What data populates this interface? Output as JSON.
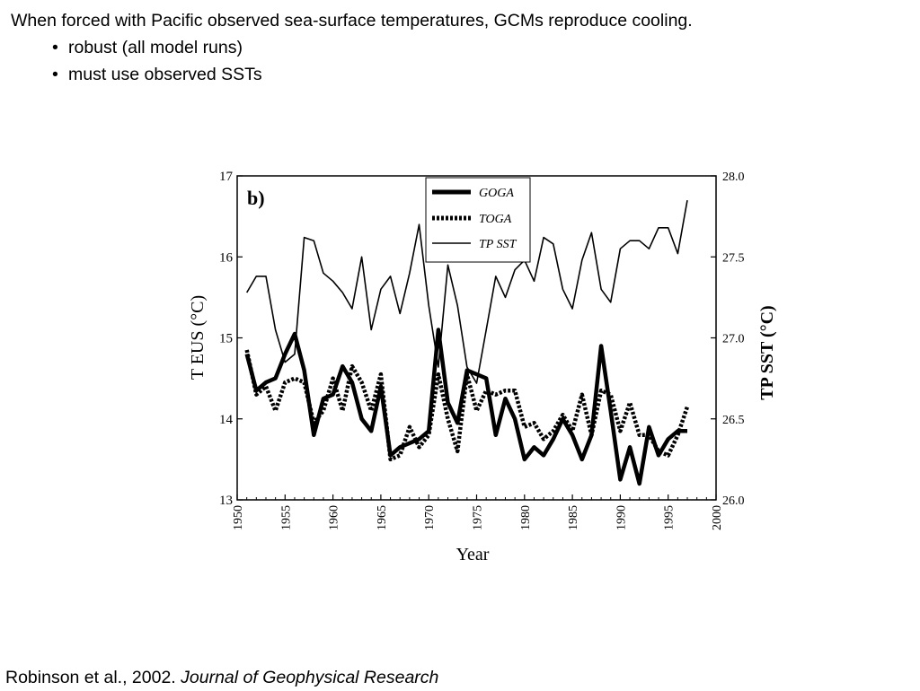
{
  "slide": {
    "heading": "When forced with Pacific observed sea-surface  temperatures, GCMs reproduce cooling.",
    "bullets": [
      {
        "marker": "•",
        "text": "robust (all model runs)"
      },
      {
        "marker": "•",
        "text": "must use observed SSTs"
      }
    ],
    "citation": {
      "authors": "Robinson et al., 2002. ",
      "journal": "Journal of Geophysical Research"
    }
  },
  "chart_data": {
    "type": "line",
    "panel_label": "b)",
    "xlabel": "Year",
    "ylabel_left": "T EUS (°C)",
    "ylabel_right": "TP SST (°C)",
    "xlim": [
      1950,
      2000
    ],
    "ylim_left": [
      13,
      17
    ],
    "ylim_right": [
      26.0,
      28.0
    ],
    "x_ticks": [
      "1950",
      "1955",
      "1960",
      "1965",
      "1970",
      "1975",
      "1980",
      "1985",
      "1990",
      "1995",
      "2000"
    ],
    "y_ticks_left": [
      "13",
      "14",
      "15",
      "16",
      "17"
    ],
    "y_ticks_right": [
      "26.0",
      "26.5",
      "27.0",
      "27.5",
      "28.0"
    ],
    "legend_position": "top-center",
    "grid": false,
    "x": [
      1951,
      1952,
      1953,
      1954,
      1955,
      1956,
      1957,
      1958,
      1959,
      1960,
      1961,
      1962,
      1963,
      1964,
      1965,
      1966,
      1967,
      1968,
      1969,
      1970,
      1971,
      1972,
      1973,
      1974,
      1975,
      1976,
      1977,
      1978,
      1979,
      1980,
      1981,
      1982,
      1983,
      1984,
      1985,
      1986,
      1987,
      1988,
      1989,
      1990,
      1991,
      1992,
      1993,
      1994,
      1995,
      1996,
      1997
    ],
    "series": [
      {
        "name": "GOGA",
        "style": "thick-solid",
        "axis": "left",
        "values": [
          14.8,
          14.35,
          14.45,
          14.5,
          14.8,
          15.05,
          14.6,
          13.8,
          14.25,
          14.3,
          14.65,
          14.45,
          14.0,
          13.85,
          14.4,
          13.55,
          13.65,
          13.7,
          13.75,
          13.85,
          15.1,
          14.2,
          13.95,
          14.6,
          14.55,
          14.5,
          13.8,
          14.25,
          14.0,
          13.5,
          13.65,
          13.55,
          13.75,
          14.0,
          13.8,
          13.5,
          13.8,
          14.9,
          14.1,
          13.25,
          13.65,
          13.2,
          13.9,
          13.55,
          13.75,
          13.85,
          13.85
        ]
      },
      {
        "name": "TOGA",
        "style": "thick-dotted",
        "axis": "left",
        "values": [
          14.85,
          14.3,
          14.4,
          14.1,
          14.45,
          14.5,
          14.45,
          13.95,
          14.1,
          14.5,
          14.1,
          14.65,
          14.45,
          14.1,
          14.55,
          13.5,
          13.55,
          13.9,
          13.65,
          13.8,
          14.55,
          14.0,
          13.6,
          14.55,
          14.1,
          14.35,
          14.3,
          14.35,
          14.35,
          13.9,
          13.95,
          13.75,
          13.85,
          14.05,
          13.85,
          14.3,
          13.8,
          14.35,
          14.3,
          13.85,
          14.2,
          13.8,
          13.8,
          13.6,
          13.55,
          13.8,
          14.15
        ]
      },
      {
        "name": "TP SST",
        "style": "thin-solid",
        "axis": "right",
        "values": [
          27.28,
          27.38,
          27.38,
          27.05,
          26.85,
          26.9,
          27.62,
          27.6,
          27.4,
          27.35,
          27.28,
          27.18,
          27.5,
          27.05,
          27.3,
          27.38,
          27.15,
          27.4,
          27.7,
          27.2,
          26.82,
          27.45,
          27.2,
          26.82,
          26.72,
          27.05,
          27.38,
          27.25,
          27.42,
          27.48,
          27.35,
          27.62,
          27.58,
          27.3,
          27.18,
          27.48,
          27.65,
          27.3,
          27.22,
          27.55,
          27.6,
          27.6,
          27.55,
          27.68,
          27.68,
          27.52,
          27.85
        ]
      }
    ]
  }
}
